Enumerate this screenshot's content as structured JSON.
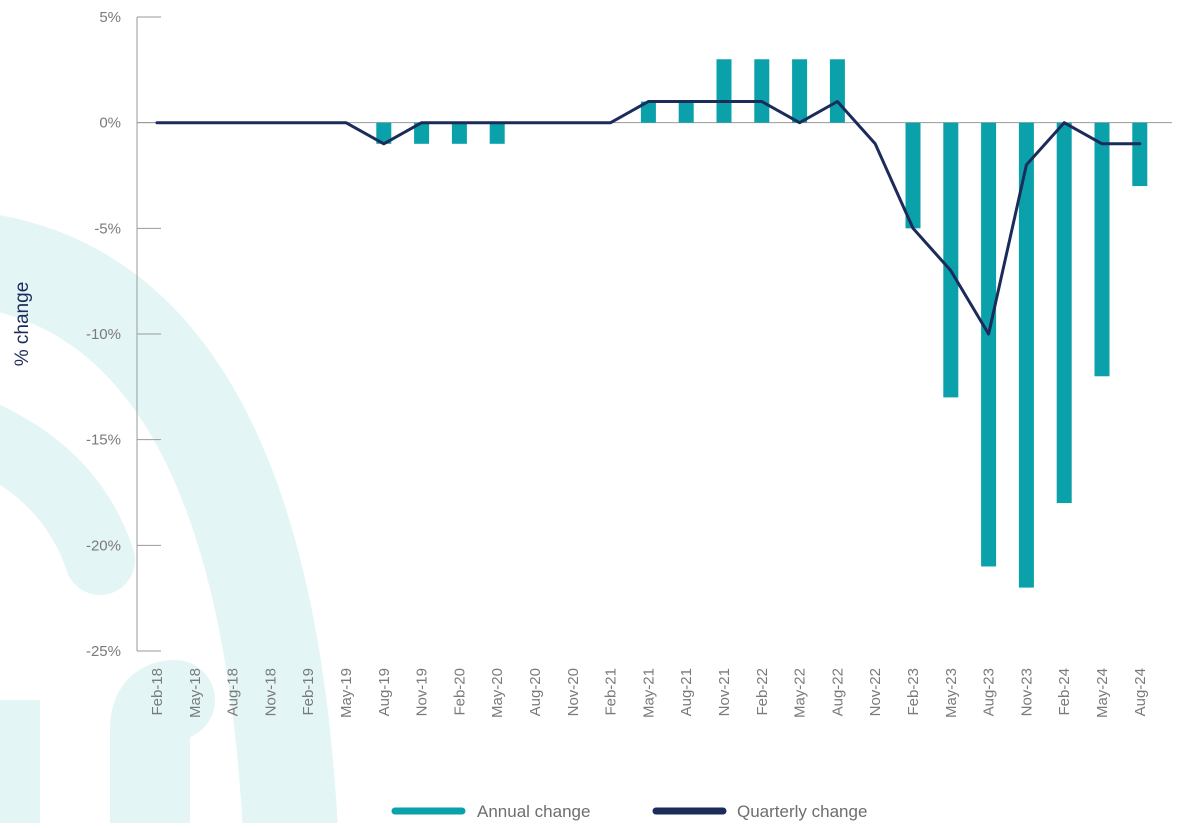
{
  "chart_data": {
    "type": "bar",
    "ylabel": "% change",
    "xlabel": "",
    "ylim": [
      -25,
      5
    ],
    "y_ticks": [
      5,
      0,
      -5,
      -10,
      -15,
      -20,
      -25
    ],
    "y_tick_labels": [
      "5%",
      "0%",
      "-5%",
      "-10%",
      "-15%",
      "-20%",
      "-25%"
    ],
    "grid": false,
    "legend_position": "bottom-center",
    "categories": [
      "Feb-18",
      "May-18",
      "Aug-18",
      "Nov-18",
      "Feb-19",
      "May-19",
      "Aug-19",
      "Nov-19",
      "Feb-20",
      "May-20",
      "Aug-20",
      "Nov-20",
      "Feb-21",
      "May-21",
      "Aug-21",
      "Nov-21",
      "Feb-22",
      "May-22",
      "Aug-22",
      "Nov-22",
      "Feb-23",
      "May-23",
      "Aug-23",
      "Nov-23",
      "Feb-24",
      "May-24",
      "Aug-24"
    ],
    "series": [
      {
        "name": "Annual change",
        "kind": "bar",
        "color": "#0aa1ab",
        "values": [
          0,
          0,
          0,
          0,
          0,
          0,
          -1,
          -1,
          -1,
          -1,
          0,
          0,
          0,
          1,
          1,
          3,
          3,
          3,
          3,
          0,
          -5,
          -13,
          -21,
          -22,
          -18,
          -12,
          -3
        ]
      },
      {
        "name": "Quarterly change",
        "kind": "line",
        "color": "#1b2b5a",
        "values": [
          0,
          0,
          0,
          0,
          0,
          0,
          -1,
          0,
          0,
          0,
          0,
          0,
          0,
          1,
          1,
          1,
          1,
          0,
          1,
          -1,
          -5,
          -7,
          -10,
          -2,
          0,
          -1,
          -1
        ]
      }
    ]
  }
}
